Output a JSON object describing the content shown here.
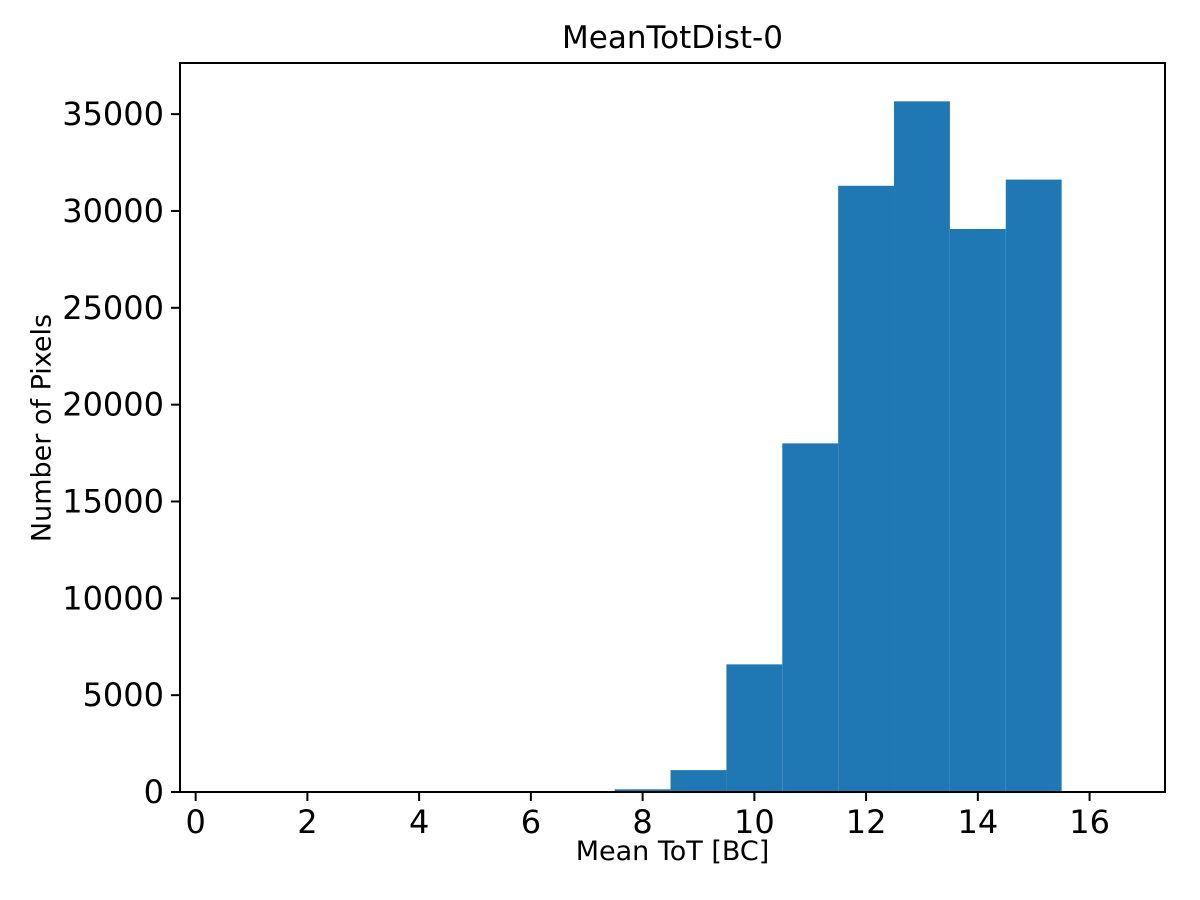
{
  "chart_data": {
    "type": "bar",
    "title": "MeanTotDist-0",
    "xlabel": "Mean ToT [BC]",
    "ylabel": "Number of Pixels",
    "bar_color": "#1f77b4",
    "axis_color": "#000000",
    "background_color": "#ffffff",
    "grid": false,
    "legend_position": "none",
    "xlim": [
      -0.28,
      17.35
    ],
    "ylim": [
      0,
      37640
    ],
    "x_ticks": [
      0,
      2,
      4,
      6,
      8,
      10,
      12,
      14,
      16
    ],
    "y_ticks": [
      0,
      5000,
      10000,
      15000,
      20000,
      25000,
      30000,
      35000
    ],
    "bin_edges": [
      0.5,
      1.5,
      2.5,
      3.5,
      4.5,
      5.5,
      6.5,
      7.5,
      8.5,
      9.5,
      10.5,
      11.5,
      12.5,
      13.5,
      14.5,
      15.5,
      16.5
    ],
    "counts": [
      0,
      0,
      0,
      0,
      0,
      0,
      0,
      140,
      1130,
      6590,
      18000,
      31300,
      35660,
      29070,
      31620,
      0
    ]
  }
}
